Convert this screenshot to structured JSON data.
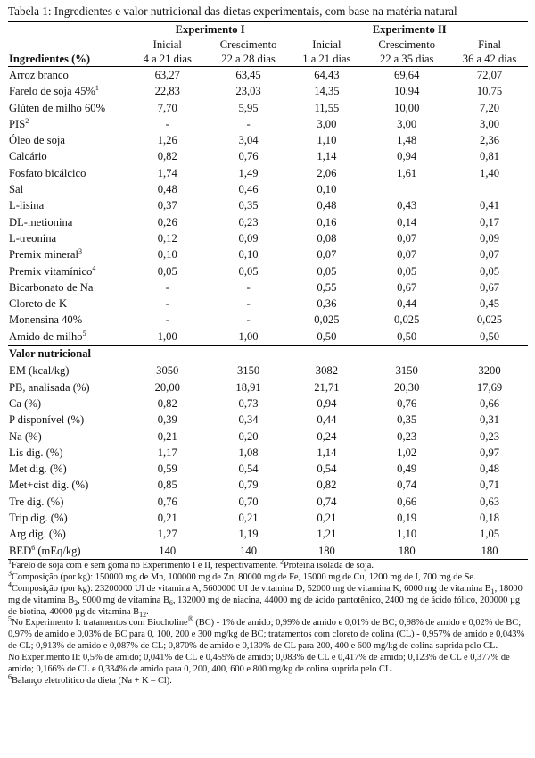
{
  "caption": "Tabela 1: Ingredientes e valor nutricional das dietas experimentais, com base na matéria natural",
  "header": {
    "exp1": "Experimento I",
    "exp2": "Experimento II",
    "rowhead": "Ingredientes (%)",
    "cols": [
      {
        "phase": "Inicial",
        "days": "4 a 21 dias"
      },
      {
        "phase": "Crescimento",
        "days": "22 a 28 dias"
      },
      {
        "phase": "Inicial",
        "days": "1 a 21 dias"
      },
      {
        "phase": "Crescimento",
        "days": "22 a 35 dias"
      },
      {
        "phase": "Final",
        "days": "36 a 42 dias"
      }
    ]
  },
  "ingredients": [
    {
      "name": "Arroz branco",
      "sup": "",
      "v": [
        "63,27",
        "63,45",
        "64,43",
        "69,64",
        "72,07"
      ]
    },
    {
      "name": "Farelo de soja 45%",
      "sup": "1",
      "v": [
        "22,83",
        "23,03",
        "14,35",
        "10,94",
        "10,75"
      ]
    },
    {
      "name": "Glúten de milho 60%",
      "sup": "",
      "v": [
        "7,70",
        "5,95",
        "11,55",
        "10,00",
        "7,20"
      ]
    },
    {
      "name": "PIS",
      "sup": "2",
      "v": [
        "-",
        "-",
        "3,00",
        "3,00",
        "3,00"
      ]
    },
    {
      "name": "Óleo de soja",
      "sup": "",
      "v": [
        "1,26",
        "3,04",
        "1,10",
        "1,48",
        "2,36"
      ]
    },
    {
      "name": "Calcário",
      "sup": "",
      "v": [
        "0,82",
        "0,76",
        "1,14",
        "0,94",
        "0,81"
      ]
    },
    {
      "name": "Fosfato bicálcico",
      "sup": "",
      "v": [
        "1,74",
        "1,49",
        "2,06",
        "1,61",
        "1,40"
      ]
    },
    {
      "name": "Sal",
      "sup": "",
      "v": [
        "0,48",
        "0,46",
        "0,10",
        "",
        ""
      ]
    },
    {
      "name": "L-lisina",
      "sup": "",
      "v": [
        "0,37",
        "0,35",
        "0,48",
        "0,43",
        "0,41"
      ]
    },
    {
      "name": "DL-metionina",
      "sup": "",
      "v": [
        "0,26",
        "0,23",
        "0,16",
        "0,14",
        "0,17"
      ]
    },
    {
      "name": "L-treonina",
      "sup": "",
      "v": [
        "0,12",
        "0,09",
        "0,08",
        "0,07",
        "0,09"
      ]
    },
    {
      "name": "Premix mineral",
      "sup": "3",
      "v": [
        "0,10",
        "0,10",
        "0,07",
        "0,07",
        "0,07"
      ]
    },
    {
      "name": "Premix vitamínico",
      "sup": "4",
      "v": [
        "0,05",
        "0,05",
        "0,05",
        "0,05",
        "0,05"
      ]
    },
    {
      "name": "Bicarbonato de Na",
      "sup": "",
      "v": [
        "-",
        "-",
        "0,55",
        "0,67",
        "0,67"
      ]
    },
    {
      "name": "Cloreto de K",
      "sup": "",
      "v": [
        "-",
        "-",
        "0,36",
        "0,44",
        "0,45"
      ]
    },
    {
      "name": "Monensina 40%",
      "sup": "",
      "v": [
        "-",
        "-",
        "0,025",
        "0,025",
        "0,025"
      ]
    },
    {
      "name": "Amido de milho",
      "sup": "5",
      "v": [
        "1,00",
        "1,00",
        "0,50",
        "0,50",
        "0,50"
      ]
    }
  ],
  "nutrition_title": "Valor nutricional",
  "nutrition": [
    {
      "name": "EM (kcal/kg)",
      "sup": "",
      "v": [
        "3050",
        "3150",
        "3082",
        "3150",
        "3200"
      ]
    },
    {
      "name": "PB, analisada (%)",
      "sup": "",
      "v": [
        "20,00",
        "18,91",
        "21,71",
        "20,30",
        "17,69"
      ]
    },
    {
      "name": "Ca (%)",
      "sup": "",
      "v": [
        "0,82",
        "0,73",
        "0,94",
        "0,76",
        "0,66"
      ]
    },
    {
      "name": "P disponível (%)",
      "sup": "",
      "v": [
        "0,39",
        "0,34",
        "0,44",
        "0,35",
        "0,31"
      ]
    },
    {
      "name": "Na (%)",
      "sup": "",
      "v": [
        "0,21",
        "0,20",
        "0,24",
        "0,23",
        "0,23"
      ]
    },
    {
      "name": "Lis dig. (%)",
      "sup": "",
      "v": [
        "1,17",
        "1,08",
        "1,14",
        "1,02",
        "0,97"
      ]
    },
    {
      "name": "Met dig. (%)",
      "sup": "",
      "v": [
        "0,59",
        "0,54",
        "0,54",
        "0,49",
        "0,48"
      ]
    },
    {
      "name": "Met+cist dig. (%)",
      "sup": "",
      "v": [
        "0,85",
        "0,79",
        "0,82",
        "0,74",
        "0,71"
      ]
    },
    {
      "name": "Tre dig. (%)",
      "sup": "",
      "v": [
        "0,76",
        "0,70",
        "0,74",
        "0,66",
        "0,63"
      ]
    },
    {
      "name": "Trip dig. (%)",
      "sup": "",
      "v": [
        "0,21",
        "0,21",
        "0,21",
        "0,19",
        "0,18"
      ]
    },
    {
      "name": "Arg dig. (%)",
      "sup": "",
      "v": [
        "1,27",
        "1,19",
        "1,21",
        "1,10",
        "1,05"
      ]
    },
    {
      "name": "BED",
      "sup": "6",
      "suffix": " (mEq/kg)",
      "v": [
        "140",
        "140",
        "180",
        "180",
        "180"
      ]
    }
  ],
  "notes": {
    "n1": "Farelo de soja com e sem goma no Experimento I e II, respectivamente. ",
    "n2": "Proteína isolada de soja.",
    "n3": "Composição (por kg): 150000 mg de Mn, 100000 mg de Zn, 80000 mg de Fe, 15000 mg de Cu, 1200 mg de I, 700 mg de Se.",
    "n4a": "Composição (por kg): 23200000 UI de vitamina A, 5600000 UI de vitamina D, 52000 mg de vitamina K, 6000 mg de vitamina B",
    "n4b": ", 18000 mg de vitamina B",
    "n4c": ", 9000 mg de vitamina B",
    "n4d": ", 132000 mg de niacina, 44000 mg de ácido pantotênico, 2400 mg de ácido fólico, 200000 µg de biotina, 40000 µg de vitamina B",
    "n4e": ".",
    "n4s": [
      "1",
      "2",
      "6",
      "12"
    ],
    "n5a": "No Experimento I: tratamentos com Biocholine",
    "n5reg": "®",
    "n5b": " (BC) - 1% de amido; 0,99% de amido e 0,01% de BC; 0,98% de amido e 0,02% de BC; 0,97% de amido e 0,03% de BC para 0, 100, 200 e 300 mg/kg de BC; tratamentos com cloreto de colina (CL) - 0,957% de amido e 0,043% de CL; 0,913% de amido e 0,087% de CL; 0,870% de amido e 0,130% de CL para 200, 400 e 600 mg/kg de colina suprida pelo CL.",
    "n5c": "No Experimento II: 0,5% de amido; 0,041% de CL e 0,459% de amido; 0,083% de CL e 0,417% de amido; 0,123% de CL e 0,377% de amido; 0,166% de CL e 0,334% de amido para 0, 200, 400, 600 e 800 mg/kg de colina suprida pelo CL.",
    "n6": "Balanço eletrolítico da dieta (Na + K – Cl)."
  }
}
